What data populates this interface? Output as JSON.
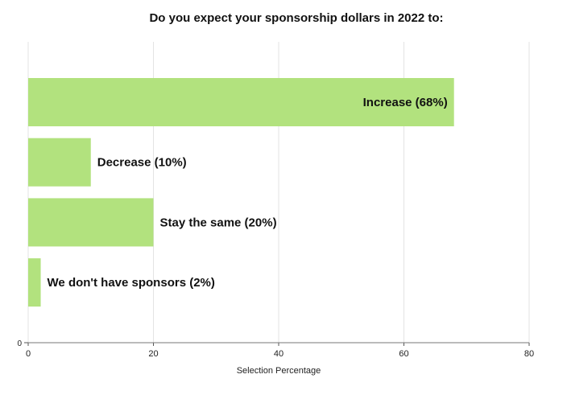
{
  "chart_data": {
    "type": "bar",
    "orientation": "horizontal",
    "title": "Do you expect your sponsorship dollars in 2022 to:",
    "xlabel": "Selection Percentage",
    "ylabel": "",
    "xlim": [
      0,
      80
    ],
    "xticks": [
      0,
      20,
      40,
      60,
      80
    ],
    "yticks": [
      0
    ],
    "grid": true,
    "categories": [
      "Increase",
      "Decrease",
      "Stay the same",
      "We don't have sponsors"
    ],
    "values": [
      68,
      10,
      20,
      2
    ],
    "bar_labels": [
      "Increase (68%)",
      "Decrease (10%)",
      "Stay the same (20%)",
      "We don't have sponsors (2%)"
    ],
    "bar_color": "#b2e27e"
  }
}
